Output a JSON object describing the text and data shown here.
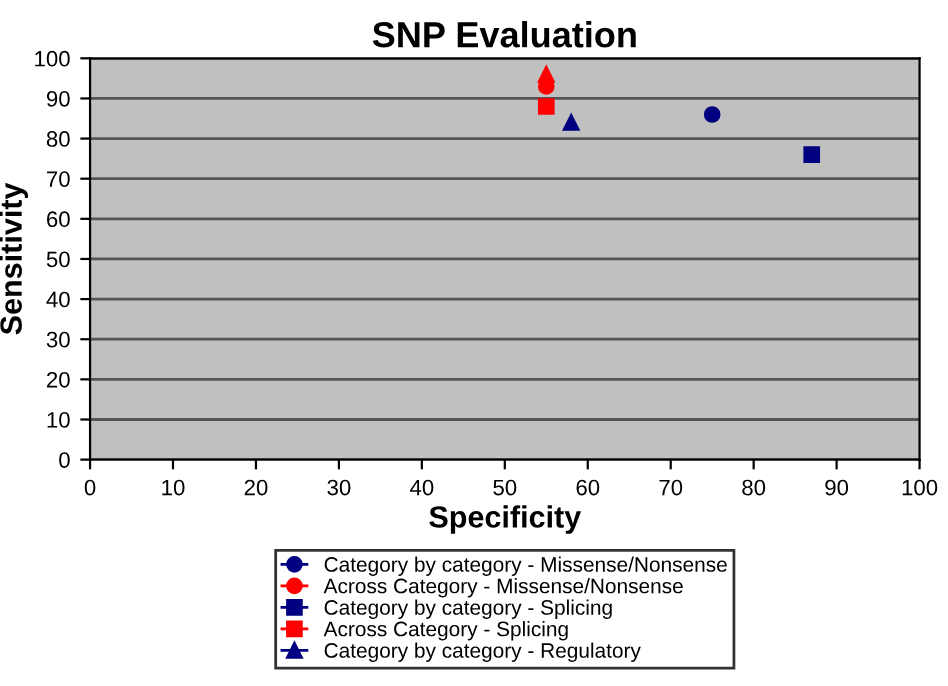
{
  "chart_data": {
    "type": "scatter",
    "title": "SNP Evaluation",
    "xlabel": "Specificity",
    "ylabel": "Sensitivity",
    "xlim": [
      0,
      100
    ],
    "xticks": [
      0,
      10,
      20,
      30,
      40,
      50,
      60,
      70,
      80,
      90,
      100
    ],
    "ylim": [
      0,
      100
    ],
    "yticks": [
      0,
      10,
      20,
      30,
      40,
      50,
      60,
      70,
      80,
      90,
      100
    ],
    "grid": "y",
    "legend": "bottom",
    "series": [
      {
        "name": "Category by category - Missense/Nonsense",
        "color": "#000080",
        "marker": "circle",
        "x": [
          75
        ],
        "values": [
          86
        ]
      },
      {
        "name": "Across Category - Missense/Nonsense",
        "color": "#ff0000",
        "marker": "circle",
        "x": [
          55
        ],
        "values": [
          93
        ]
      },
      {
        "name": "Category by category - Splicing",
        "color": "#000080",
        "marker": "square",
        "x": [
          87
        ],
        "values": [
          76
        ]
      },
      {
        "name": "Across Category - Splicing",
        "color": "#ff0000",
        "marker": "square",
        "x": [
          55
        ],
        "values": [
          88
        ]
      },
      {
        "name": "Category by category - Regulatory",
        "color": "#000080",
        "marker": "triangle",
        "x": [
          58
        ],
        "values": [
          84
        ]
      },
      {
        "color": "#ff0000",
        "marker": "triangle",
        "x": [
          55
        ],
        "values": [
          96
        ]
      }
    ]
  }
}
